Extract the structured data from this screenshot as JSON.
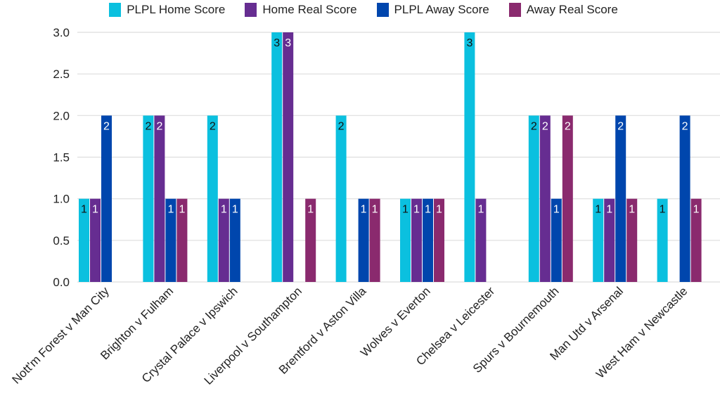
{
  "chart_data": {
    "type": "bar",
    "title": "",
    "xlabel": "",
    "ylabel": "",
    "ylim": [
      0,
      3
    ],
    "yticks": [
      "0.0",
      "0.5",
      "1.0",
      "1.5",
      "2.0",
      "2.5",
      "3.0"
    ],
    "grid": true,
    "legend_position": "top-center",
    "categories": [
      "Nott'm Forest v Man City",
      "Brighton v Fulham",
      "Crystal Palace v Ipswich",
      "Liverpool v Southampton",
      "Brentford v Aston Villa",
      "Wolves v Everton",
      "Chelsea v Leicester",
      "Spurs v Bournemouth",
      "Man Utd v Arsenal",
      "West Ham v Newcastle"
    ],
    "series": [
      {
        "name": "PLPL Home Score",
        "color": "#0bc0df",
        "label_color": "#111111",
        "values": [
          1,
          2,
          2,
          3,
          2,
          1,
          3,
          2,
          1,
          1
        ]
      },
      {
        "name": "Home Real Score",
        "color": "#662d91",
        "label_color": "#ffffff",
        "values": [
          1,
          2,
          1,
          3,
          0,
          1,
          1,
          2,
          1,
          0
        ]
      },
      {
        "name": "PLPL Away Score",
        "color": "#0046ad",
        "label_color": "#ffffff",
        "values": [
          2,
          1,
          1,
          0,
          1,
          1,
          0,
          1,
          2,
          2
        ]
      },
      {
        "name": "Away Real Score",
        "color": "#8a2a6e",
        "label_color": "#ffffff",
        "values": [
          0,
          1,
          0,
          1,
          1,
          1,
          0,
          2,
          1,
          1
        ]
      }
    ]
  }
}
